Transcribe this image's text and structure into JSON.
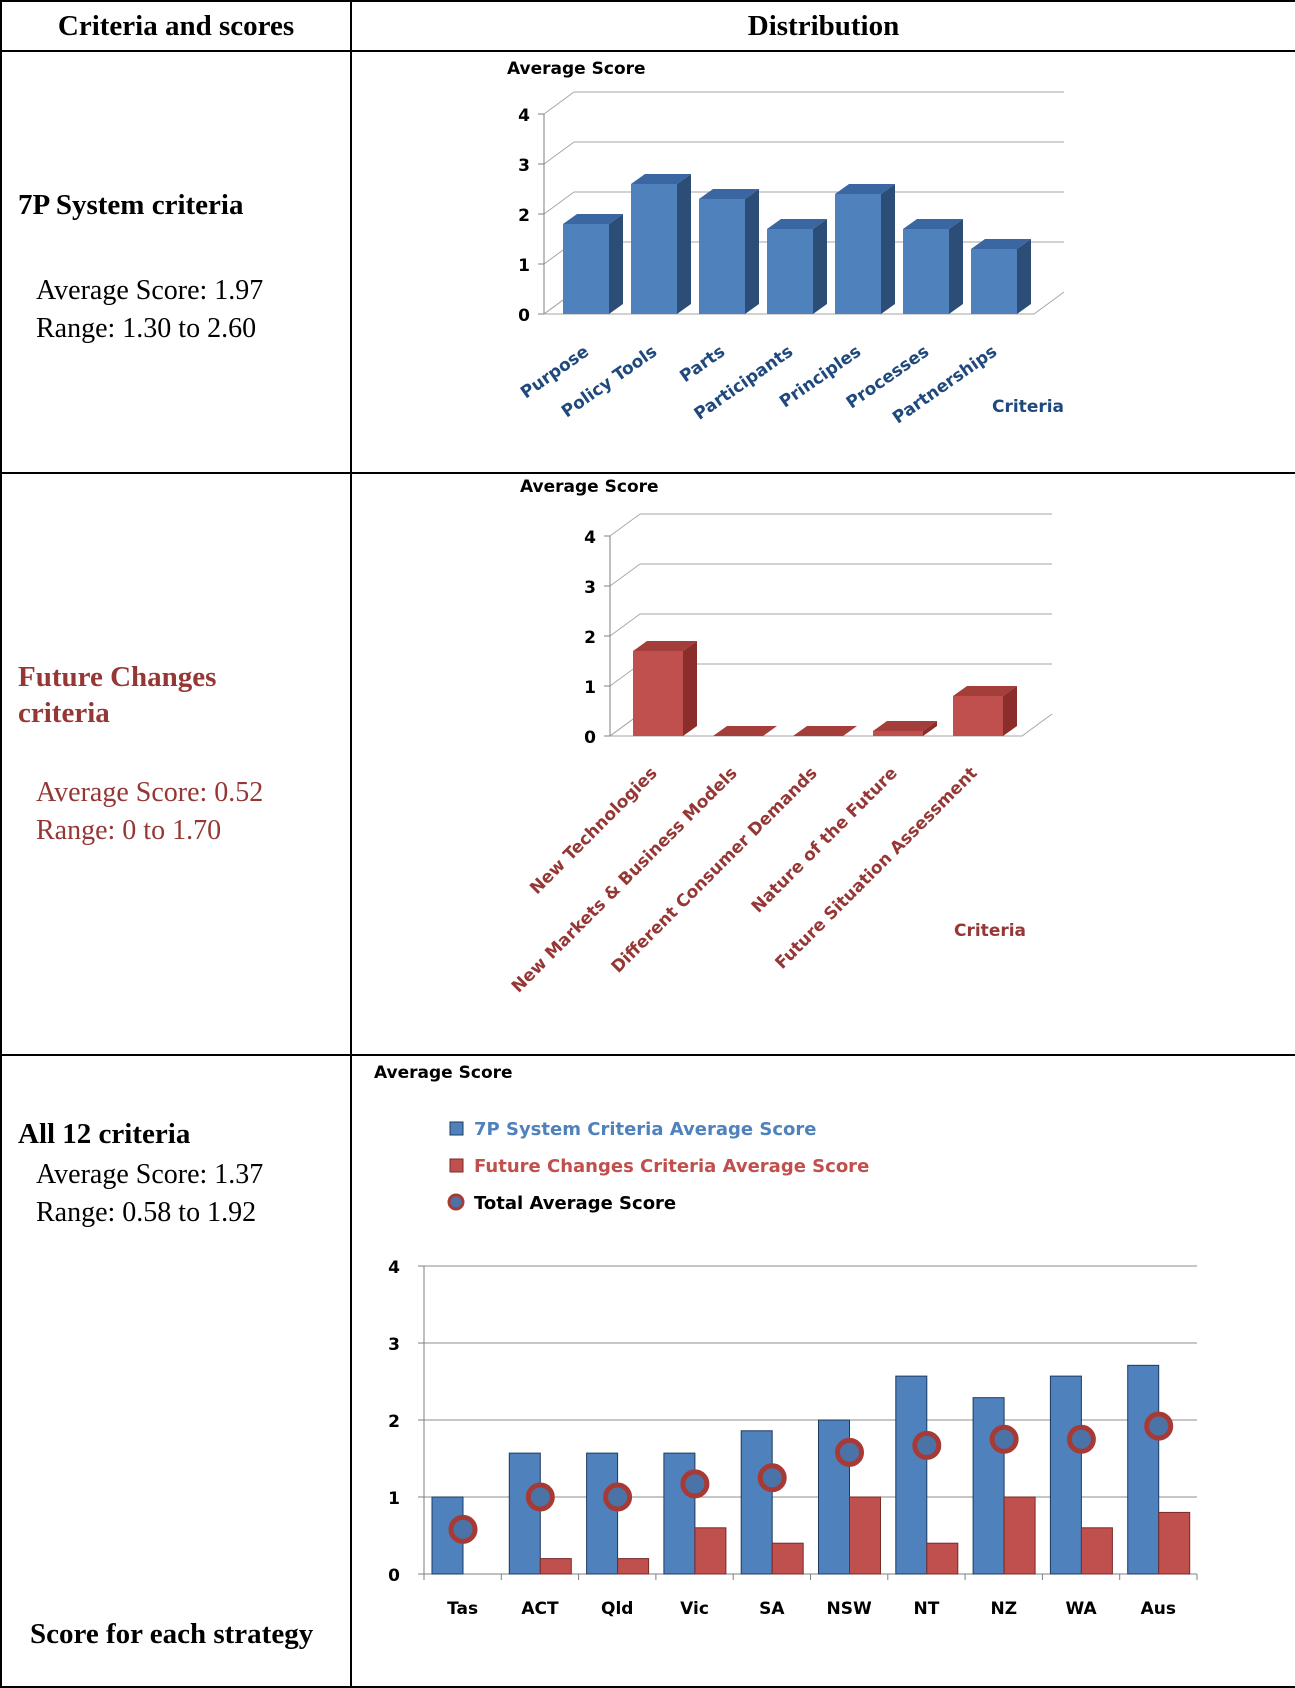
{
  "table": {
    "header_left": "Criteria and scores",
    "header_right": "Distribution"
  },
  "rows": [
    {
      "criteria_name": "7P System criteria",
      "average": "Average Score: 1.97",
      "range": "Range: 1.30 to 2.60"
    },
    {
      "criteria_name_line1": "Future Changes",
      "criteria_name_line2": "criteria",
      "average": "Average Score: 0.52",
      "range": "Range: 0 to 1.70"
    },
    {
      "criteria_name": "All 12 criteria",
      "average": "Average Score: 1.37",
      "range": "Range: 0.58 to 1.92",
      "footer": "Score for each strategy"
    }
  ],
  "colors": {
    "blue": "#4F81BD",
    "blue_dark": "#2C4D75",
    "red": "#C0504D",
    "red_dark": "#8B2D2A",
    "red_text": "#953735",
    "blue_text": "#1F497D"
  },
  "chart_data": [
    {
      "type": "bar",
      "style": "3d",
      "ylabel": "Average Score",
      "xlabel": "Criteria",
      "ylim": [
        0,
        4
      ],
      "yticks": [
        "0",
        "1",
        "2",
        "3",
        "4"
      ],
      "categories": [
        "Purpose",
        "Policy Tools",
        "Parts",
        "Participants",
        "Principles",
        "Processes",
        "Partnerships"
      ],
      "values": [
        1.8,
        2.6,
        2.3,
        1.7,
        2.4,
        1.7,
        1.3
      ]
    },
    {
      "type": "bar",
      "style": "3d",
      "ylabel": "Average Score",
      "xlabel": "Criteria",
      "ylim": [
        0,
        4
      ],
      "yticks": [
        "0",
        "1",
        "2",
        "3",
        "4"
      ],
      "categories": [
        "New Technologies",
        "New Markets & Business Models",
        "Different Consumer Demands",
        "Nature of the Future",
        "Future Situation Assessment"
      ],
      "values": [
        1.7,
        0,
        0,
        0.1,
        0.8
      ]
    },
    {
      "type": "bar",
      "ylabel": "Average Score",
      "ylim": [
        0,
        4
      ],
      "yticks": [
        "0",
        "1",
        "2",
        "3",
        "4"
      ],
      "categories": [
        "Tas",
        "ACT",
        "Qld",
        "Vic",
        "SA",
        "NSW",
        "NT",
        "NZ",
        "WA",
        "Aus"
      ],
      "legend_position": "top-left",
      "series": [
        {
          "name": "7P System Criteria Average Score",
          "values": [
            1.0,
            1.57,
            1.57,
            1.57,
            1.86,
            2.0,
            2.57,
            2.29,
            2.57,
            2.71
          ]
        },
        {
          "name": "Future Changes Criteria Average Score",
          "values": [
            0,
            0.2,
            0.2,
            0.6,
            0.4,
            1.0,
            0.4,
            1.0,
            0.6,
            0.8
          ]
        },
        {
          "name": "Total Average Score",
          "marker": "circle",
          "values": [
            0.58,
            1.0,
            1.0,
            1.17,
            1.25,
            1.58,
            1.67,
            1.75,
            1.75,
            1.92
          ]
        }
      ]
    }
  ]
}
